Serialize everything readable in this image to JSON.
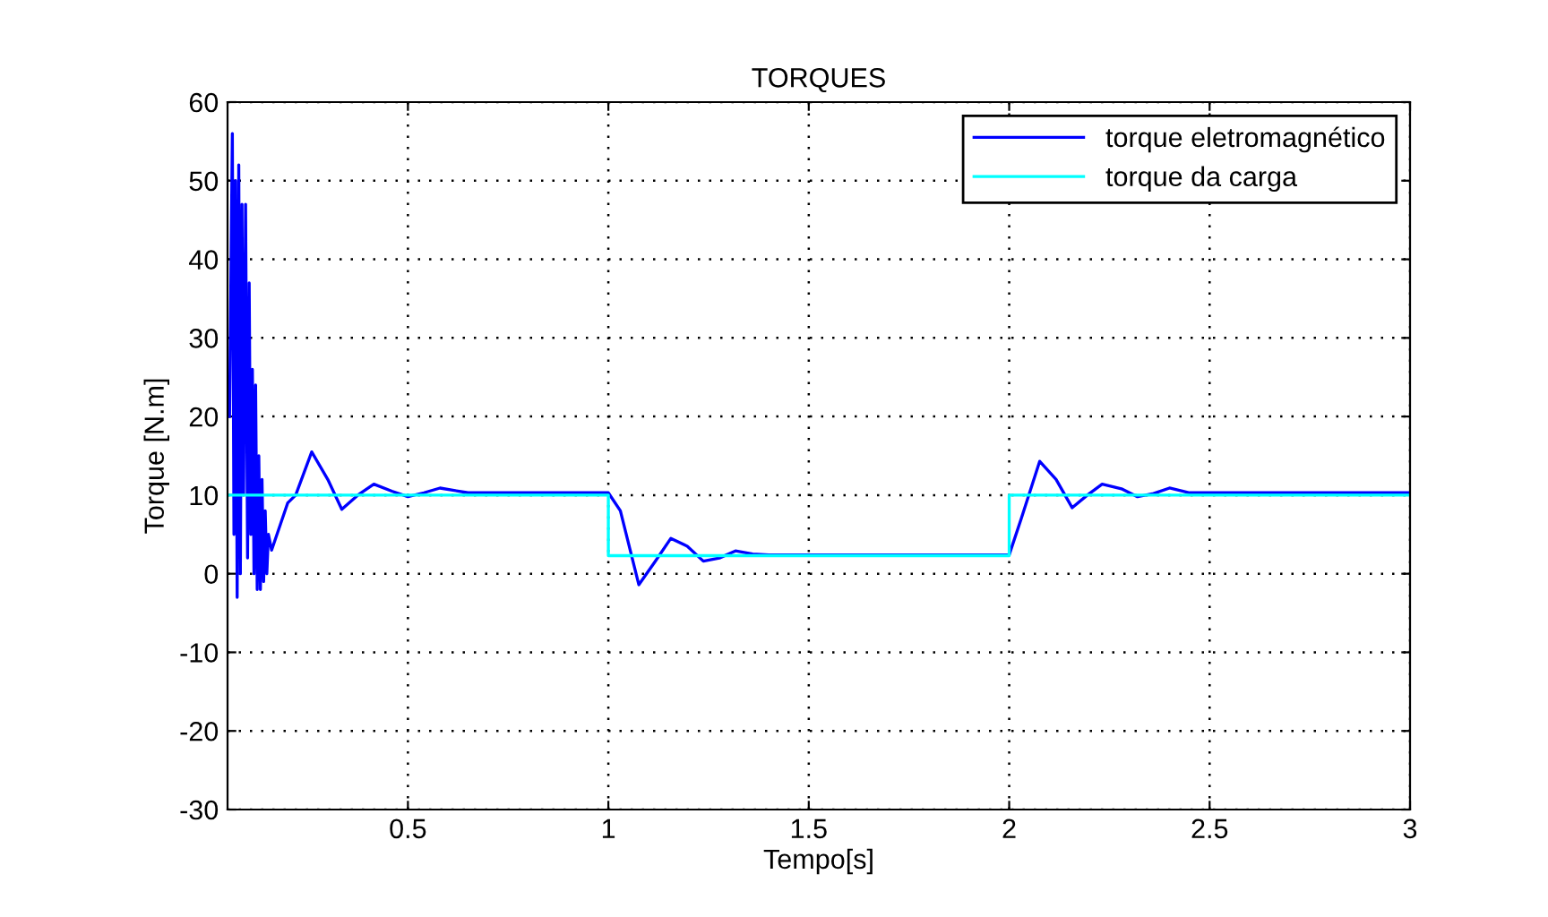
{
  "chart_data": {
    "type": "line",
    "title": "TORQUES",
    "xlabel": "Tempo[s]",
    "ylabel": "Torque [N.m]",
    "xlim": [
      0.05,
      3
    ],
    "xticks": [
      0.5,
      1,
      1.5,
      2,
      2.5,
      3
    ],
    "ylim": [
      -30,
      60
    ],
    "yticks": [
      -30,
      -20,
      -10,
      0,
      10,
      20,
      30,
      40,
      50,
      60
    ],
    "grid": true,
    "legend": "top right",
    "line_style": "solid",
    "marker": "none",
    "series": [
      {
        "name": "torque eletromagnético",
        "color": "#0000ff",
        "x": [
          0.055,
          0.062,
          0.066,
          0.07,
          0.074,
          0.078,
          0.082,
          0.086,
          0.09,
          0.095,
          0.1,
          0.104,
          0.108,
          0.112,
          0.116,
          0.12,
          0.124,
          0.128,
          0.132,
          0.136,
          0.14,
          0.144,
          0.148,
          0.152,
          0.16,
          0.18,
          0.2,
          0.22,
          0.26,
          0.3,
          0.335,
          0.375,
          0.415,
          0.46,
          0.5,
          0.54,
          0.58,
          0.65,
          1.0,
          1.03,
          1.076,
          1.116,
          1.156,
          1.197,
          1.237,
          1.277,
          1.317,
          1.36,
          1.4,
          2.0,
          2.03,
          2.076,
          2.117,
          2.157,
          2.195,
          2.232,
          2.28,
          2.32,
          2.36,
          2.4,
          2.45,
          3.0
        ],
        "values": [
          20,
          56,
          5,
          50,
          -3,
          52,
          0,
          47,
          10,
          47,
          2,
          37,
          5,
          26,
          0,
          24,
          -2,
          15,
          -2,
          12,
          -1,
          8,
          0,
          5,
          3,
          6,
          9,
          10,
          15.5,
          12,
          8.2,
          10,
          11.4,
          10.5,
          9.8,
          10.3,
          10.9,
          10.3,
          10.3,
          8,
          -1.4,
          1.5,
          4.5,
          3.5,
          1.6,
          2,
          2.9,
          2.5,
          2.4,
          2.4,
          7,
          14.3,
          12,
          8.4,
          10,
          11.4,
          10.8,
          9.8,
          10.2,
          10.9,
          10.3,
          10.3
        ]
      },
      {
        "name": "torque da carga",
        "color": "#00ffff",
        "x": [
          0.05,
          1.0,
          1.0,
          2.0,
          2.0,
          3.0
        ],
        "values": [
          10,
          10,
          2.3,
          2.3,
          10,
          10
        ]
      }
    ]
  }
}
